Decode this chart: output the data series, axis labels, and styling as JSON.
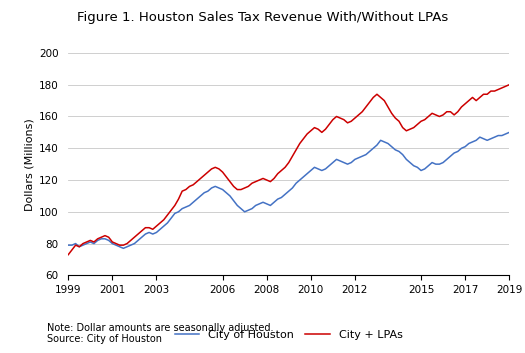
{
  "title": "Figure 1. Houston Sales Tax Revenue With/Without LPAs",
  "ylabel": "Dollars (Millions)",
  "ylim": [
    60,
    200
  ],
  "yticks": [
    60,
    80,
    100,
    120,
    140,
    160,
    180,
    200
  ],
  "xticks": [
    1999,
    2001,
    2003,
    2006,
    2008,
    2010,
    2012,
    2015,
    2017,
    2019
  ],
  "note": "Note: Dollar amounts are seasonally adjusted.",
  "source": "Source: City of Houston",
  "legend_labels": [
    "City of Houston",
    "City + LPAs"
  ],
  "line_colors": [
    "#4472C4",
    "#cc0000"
  ],
  "city_houston": [
    79,
    79,
    80,
    78,
    79,
    80,
    81,
    80,
    82,
    83,
    83,
    82,
    80,
    79,
    78,
    77,
    78,
    79,
    80,
    82,
    84,
    86,
    87,
    86,
    87,
    89,
    91,
    93,
    96,
    99,
    100,
    102,
    103,
    104,
    106,
    108,
    110,
    112,
    113,
    115,
    116,
    115,
    114,
    112,
    110,
    107,
    104,
    102,
    100,
    101,
    102,
    104,
    105,
    106,
    105,
    104,
    106,
    108,
    109,
    111,
    113,
    115,
    118,
    120,
    122,
    124,
    126,
    128,
    127,
    126,
    127,
    129,
    131,
    133,
    132,
    131,
    130,
    131,
    133,
    134,
    135,
    136,
    138,
    140,
    142,
    145,
    144,
    143,
    141,
    139,
    138,
    136,
    133,
    131,
    129,
    128,
    126,
    127,
    129,
    131,
    130,
    130,
    131,
    133,
    135,
    137,
    138,
    140,
    141,
    143,
    144,
    145,
    147,
    146,
    145,
    146,
    147,
    148,
    148,
    149,
    150
  ],
  "city_lpas": [
    73,
    76,
    79,
    78,
    80,
    81,
    82,
    81,
    83,
    84,
    85,
    84,
    81,
    80,
    79,
    79,
    80,
    82,
    84,
    86,
    88,
    90,
    90,
    89,
    91,
    93,
    95,
    98,
    101,
    104,
    108,
    113,
    114,
    116,
    117,
    119,
    121,
    123,
    125,
    127,
    128,
    127,
    125,
    122,
    119,
    116,
    114,
    114,
    115,
    116,
    118,
    119,
    120,
    121,
    120,
    119,
    121,
    124,
    126,
    128,
    131,
    135,
    139,
    143,
    146,
    149,
    151,
    153,
    152,
    150,
    152,
    155,
    158,
    160,
    159,
    158,
    156,
    157,
    159,
    161,
    163,
    166,
    169,
    172,
    174,
    172,
    170,
    166,
    162,
    159,
    157,
    153,
    151,
    152,
    153,
    155,
    157,
    158,
    160,
    162,
    161,
    160,
    161,
    163,
    163,
    161,
    163,
    166,
    168,
    170,
    172,
    170,
    172,
    174,
    174,
    176,
    176,
    177,
    178,
    179,
    180
  ],
  "n_points": 121,
  "start_year": 1999,
  "end_year": 2019
}
